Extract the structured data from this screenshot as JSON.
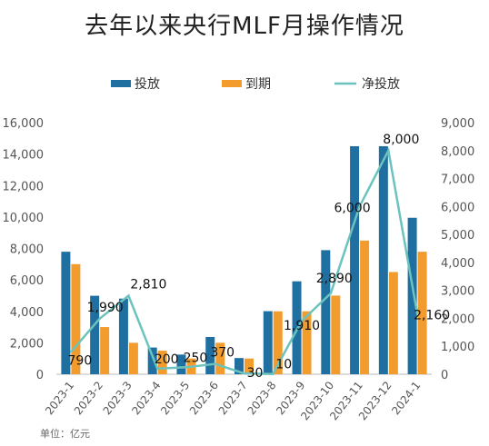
{
  "title": "去年以来央行MLF月操作情况",
  "unit_note": "单位：亿元",
  "colors": {
    "invest": "#1F6FA0",
    "expire": "#F39C2E",
    "net": "#6CC3BE",
    "axis": "#bbbbbb"
  },
  "chart_data": {
    "type": "bar",
    "categories": [
      "2023-1",
      "2023-2",
      "2023-3",
      "2023-4",
      "2023-5",
      "2023-6",
      "2023-7",
      "2023-8",
      "2023-9",
      "2023-10",
      "2023-11",
      "2023-12",
      "2024-1"
    ],
    "series": [
      {
        "name": "投放",
        "type": "bar",
        "axis": "left",
        "values": [
          7790,
          4990,
          4810,
          1700,
          1250,
          2370,
          1030,
          4010,
          5910,
          7890,
          14500,
          14500,
          9950
        ]
      },
      {
        "name": "到期",
        "type": "bar",
        "axis": "left",
        "values": [
          7000,
          3000,
          2000,
          1500,
          1000,
          2000,
          1000,
          4000,
          4000,
          5000,
          8500,
          6500,
          7790
        ]
      },
      {
        "name": "净投放",
        "type": "line",
        "axis": "right",
        "values": [
          790,
          1990,
          2810,
          200,
          250,
          370,
          30,
          10,
          1910,
          2890,
          6000,
          8000,
          2160
        ],
        "labels": [
          "790",
          "1,990",
          "2,810",
          "200",
          "250",
          "370",
          "30",
          "10",
          "1,910",
          "2,890",
          "6,000",
          "8,000",
          "2,160"
        ]
      }
    ],
    "left_axis": {
      "ylim": [
        0,
        16000
      ],
      "ticks": [
        "0",
        "2,000",
        "4,000",
        "6,000",
        "8,000",
        "10,000",
        "12,000",
        "14,000",
        "16,000"
      ]
    },
    "right_axis": {
      "ylim": [
        0,
        9000
      ],
      "ticks": [
        "0",
        "1,000",
        "2,000",
        "3,000",
        "4,000",
        "5,000",
        "6,000",
        "7,000",
        "8,000",
        "9,000"
      ]
    },
    "legend": {
      "placement": "top",
      "entries": [
        "投放",
        "到期",
        "净投放"
      ]
    },
    "grid": false
  }
}
